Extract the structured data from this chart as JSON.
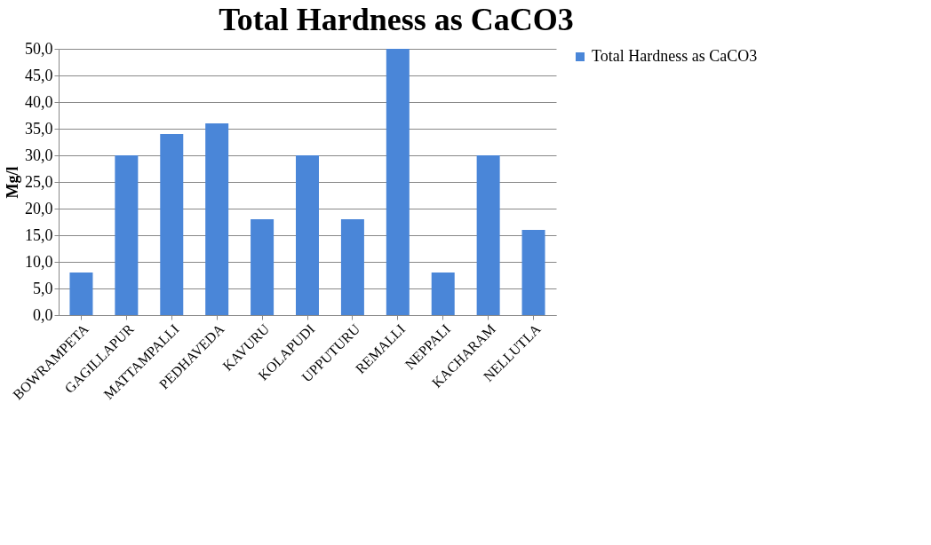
{
  "chart_data": {
    "type": "bar",
    "title": "Total Hardness as CaCO3",
    "ylabel": "Mg/l",
    "categories": [
      "BOWRAMPETA",
      "GAGILLAPUR",
      "MATTAMPALLI",
      "PEDHAVEDA",
      "KAVURU",
      "KOLAPUDI",
      "UPPUTURU",
      "REMALLI",
      "NEPPALI",
      "KACHARAM",
      "NELLUTLA"
    ],
    "series": [
      {
        "name": "Total Hardness as CaCO3",
        "color": "#4a86d8",
        "values": [
          8,
          30,
          34,
          36,
          18,
          30,
          18,
          50,
          8,
          30,
          16
        ]
      }
    ],
    "ylim": [
      0,
      50
    ],
    "yticks": [
      {
        "value": 0,
        "label": "0,0"
      },
      {
        "value": 5,
        "label": "5,0"
      },
      {
        "value": 10,
        "label": "10,0"
      },
      {
        "value": 15,
        "label": "15,0"
      },
      {
        "value": 20,
        "label": "20,0"
      },
      {
        "value": 25,
        "label": "25,0"
      },
      {
        "value": 30,
        "label": "30,0"
      },
      {
        "value": 35,
        "label": "35,0"
      },
      {
        "value": 40,
        "label": "40,0"
      },
      {
        "value": 45,
        "label": "45,0"
      },
      {
        "value": 50,
        "label": "50,0"
      }
    ],
    "grid": "y",
    "legend": "right"
  }
}
